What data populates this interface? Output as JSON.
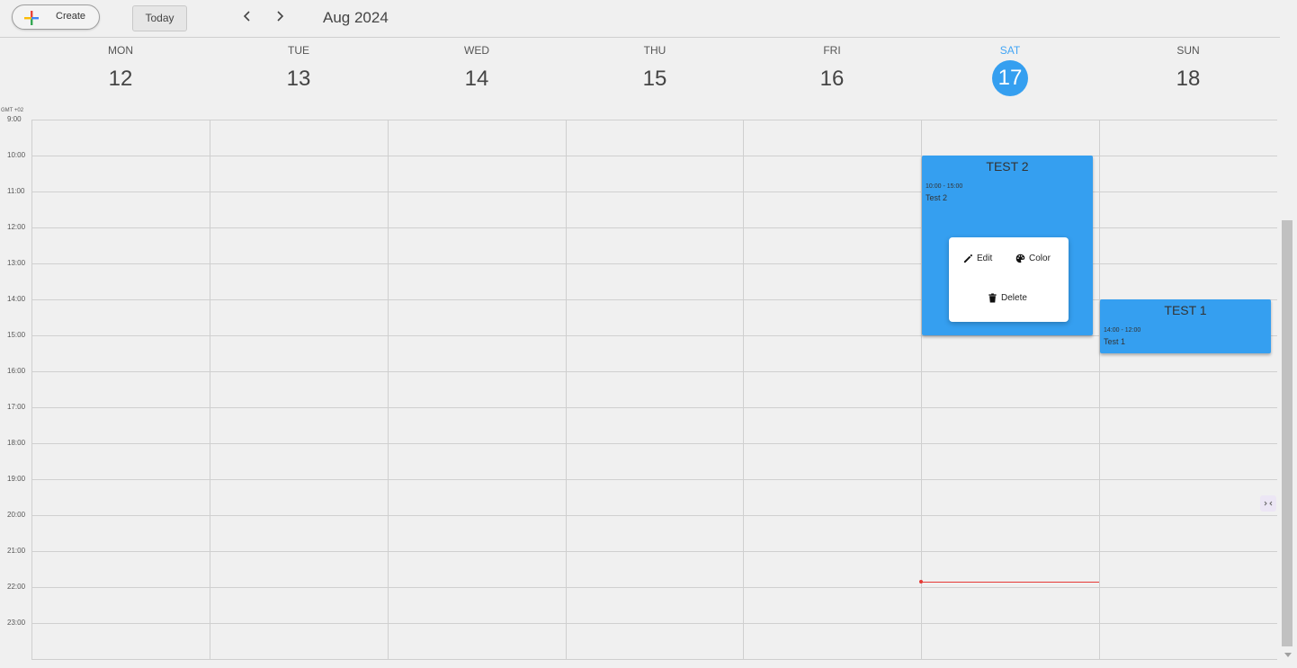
{
  "toolbar": {
    "create_label": "Create",
    "today_label": "Today",
    "month_label": "Aug 2024"
  },
  "timezone_label": "GMT +02",
  "days": [
    {
      "name": "MON",
      "date": "12"
    },
    {
      "name": "TUE",
      "date": "13"
    },
    {
      "name": "WED",
      "date": "14"
    },
    {
      "name": "THU",
      "date": "15"
    },
    {
      "name": "FRI",
      "date": "16"
    },
    {
      "name": "SAT",
      "date": "17"
    },
    {
      "name": "SUN",
      "date": "18"
    }
  ],
  "hours": [
    "9:00",
    "10:00",
    "11:00",
    "12:00",
    "13:00",
    "14:00",
    "15:00",
    "16:00",
    "17:00",
    "18:00",
    "19:00",
    "20:00",
    "21:00",
    "22:00",
    "23:00"
  ],
  "events": [
    {
      "title": "TEST 2",
      "time": "10:00 - 15:00",
      "description": "Test 2",
      "day": "SAT"
    },
    {
      "title": "TEST 1",
      "time": "14:00 - 12:00",
      "description": "Test 1",
      "day": "SUN"
    }
  ],
  "popup": {
    "edit_label": "Edit",
    "color_label": "Color",
    "delete_label": "Delete"
  },
  "colors": {
    "accent": "#359ff0",
    "now_line": "#e53935"
  }
}
